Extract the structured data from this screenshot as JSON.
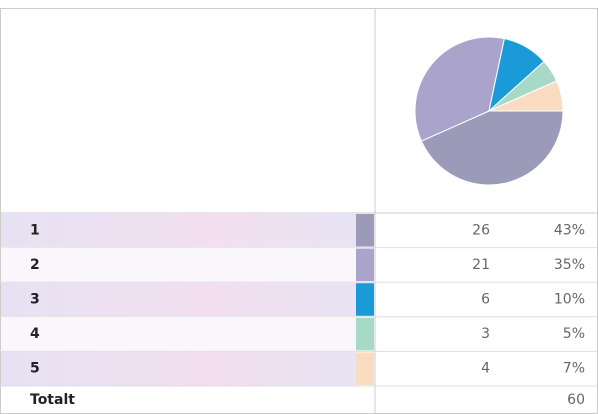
{
  "chart_data": {
    "type": "pie",
    "categories": [
      "1",
      "2",
      "3",
      "4",
      "5"
    ],
    "values": [
      26,
      21,
      6,
      3,
      4
    ],
    "percent_labels": [
      "43%",
      "35%",
      "10%",
      "5%",
      "7%"
    ],
    "colors": [
      "#9b9bb9",
      "#aaa4cd",
      "#1a9ad6",
      "#a6d9c6",
      "#f9dcc0"
    ],
    "total_label": "Totalt",
    "total": 60
  }
}
